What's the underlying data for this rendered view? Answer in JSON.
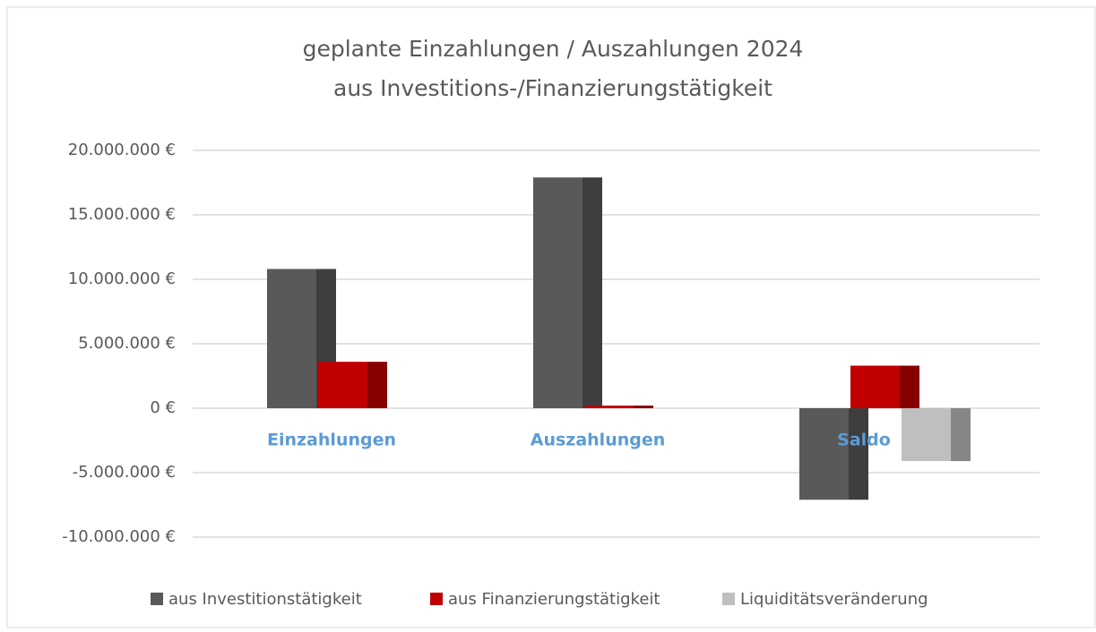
{
  "chart_data": {
    "type": "bar3d",
    "title": [
      "geplante Einzahlungen / Auszahlungen 2024",
      "aus Investitions-/Finanzierungstätigkeit"
    ],
    "categories": [
      "Einzahlungen",
      "Auszahlungen",
      "Saldo"
    ],
    "series": [
      {
        "name": "aus Investitionstätigkeit",
        "color": "#595959",
        "values": [
          10800000,
          17900000,
          -7100000
        ]
      },
      {
        "name": "aus Finanzierungstätigkeit",
        "color": "#c00000",
        "values": [
          3600000,
          200000,
          3300000
        ]
      },
      {
        "name": "Liquiditätsveränderung",
        "color": "#bfbfbf",
        "values": [
          null,
          null,
          -4100000
        ]
      }
    ],
    "ylim": [
      -10000000,
      20000000
    ],
    "yticks": [
      {
        "value": -10000000,
        "label": "-10.000.000 €"
      },
      {
        "value": -5000000,
        "label": "-5.000.000 €"
      },
      {
        "value": 0,
        "label": "0 €"
      },
      {
        "value": 5000000,
        "label": "5.000.000 €"
      },
      {
        "value": 10000000,
        "label": "10.000.000 €"
      },
      {
        "value": 15000000,
        "label": "15.000.000 €"
      },
      {
        "value": 20000000,
        "label": "20.000.000 €"
      }
    ],
    "grid": true,
    "legend": "bottom"
  }
}
